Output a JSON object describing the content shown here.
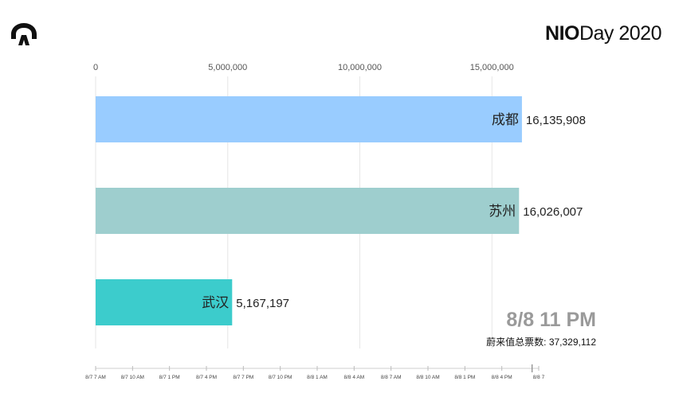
{
  "brand": {
    "bold": "NIO",
    "light": "Day 2020"
  },
  "logo_icon": "nio-logo-icon",
  "stamp": {
    "date": "8/8 11 PM",
    "total_label": "蔚来值总票数:",
    "total_value": "37,329,112"
  },
  "chart_data": {
    "type": "bar",
    "orientation": "horizontal",
    "title": "",
    "xlim": [
      0,
      16500000
    ],
    "x_ticks": [
      0,
      5000000,
      10000000,
      15000000
    ],
    "x_tick_labels": [
      "0",
      "5,000,000",
      "10,000,000",
      "15,000,000"
    ],
    "grid": true,
    "categories": [
      "成都",
      "苏州",
      "武汉"
    ],
    "values": [
      16135908,
      16026007,
      5167197
    ],
    "value_labels": [
      "16,135,908",
      "16,026,007",
      "5,167,197"
    ],
    "colors": [
      "#99CCFF",
      "#9ECECE",
      "#3CCCCC"
    ],
    "timeline": {
      "ticks": [
        "8/7 7 AM",
        "8/7 10 AM",
        "8/7 1 PM",
        "8/7 4 PM",
        "8/7 7 PM",
        "8/7 10 PM",
        "8/8 1 AM",
        "8/8 4 AM",
        "8/8 7 AM",
        "8/8 10 AM",
        "8/8 1 PM",
        "8/8 4 PM",
        "8/8 7"
      ],
      "progress": 0.985
    }
  }
}
